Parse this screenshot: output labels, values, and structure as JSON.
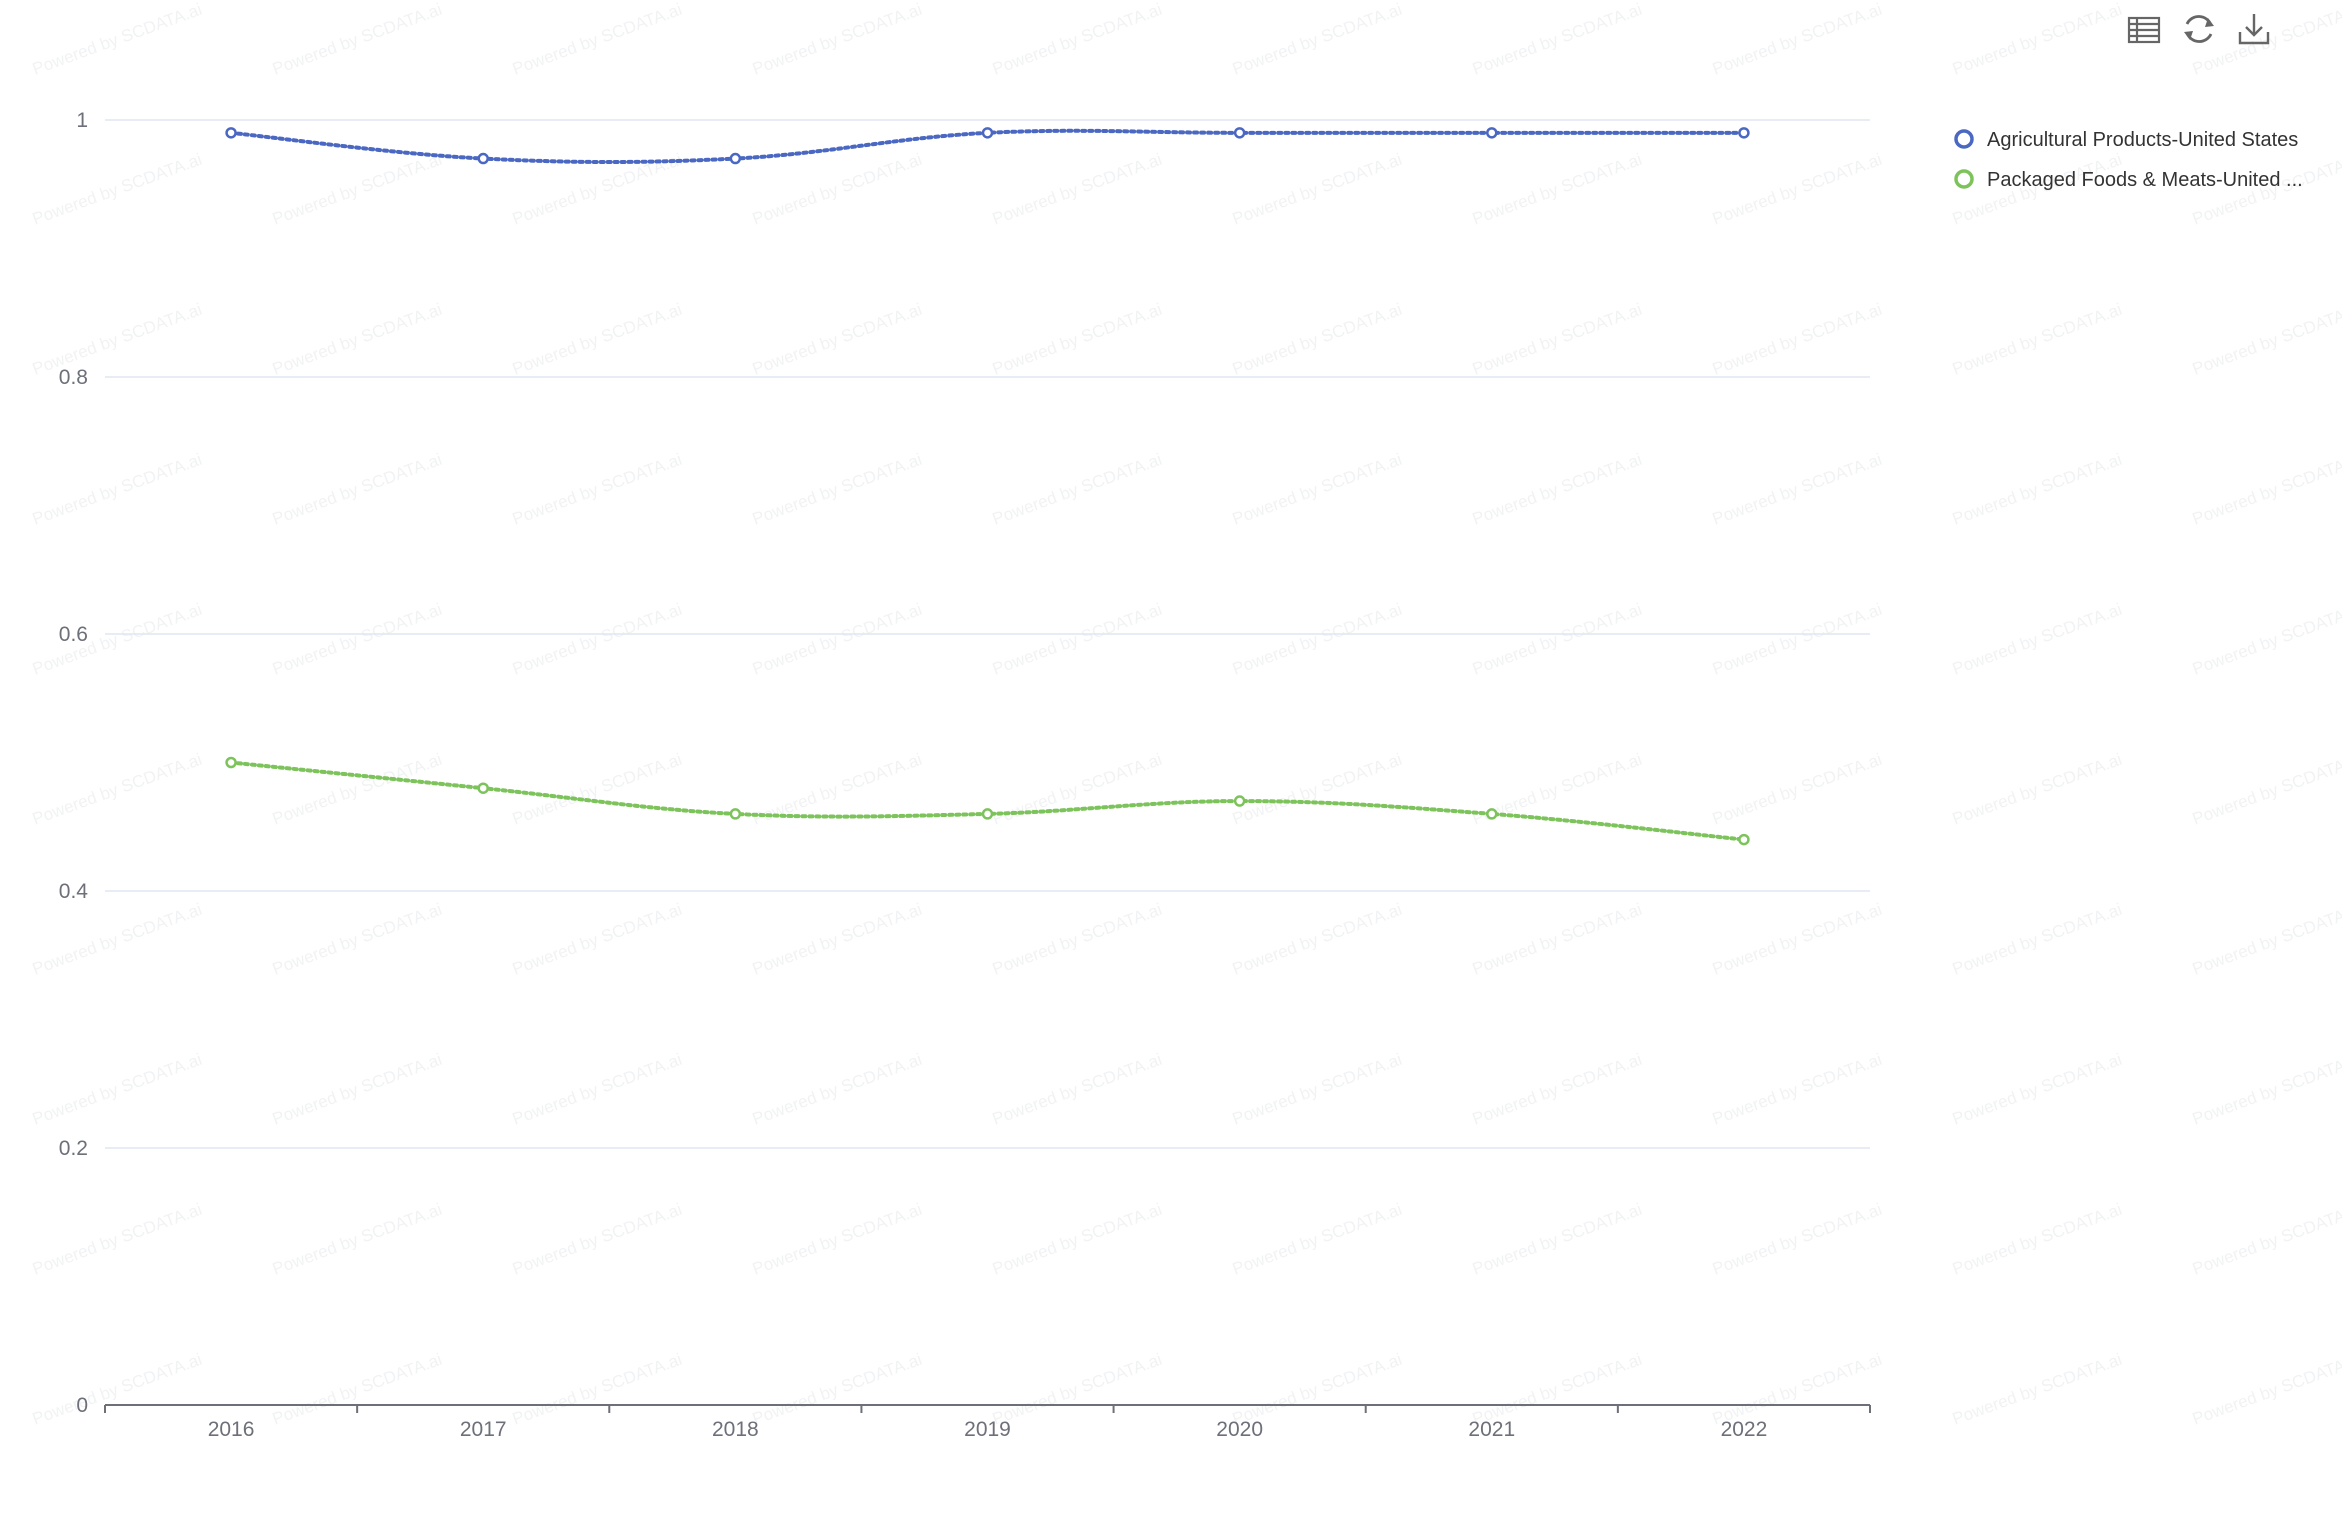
{
  "toolbox": {
    "icons": [
      "data-view-icon",
      "restore-icon",
      "download-icon"
    ]
  },
  "watermark_text": "Powered by SCDATA.ai",
  "chart_data": {
    "type": "line",
    "title": "",
    "xlabel": "",
    "ylabel": "",
    "categories": [
      "2016",
      "2017",
      "2018",
      "2019",
      "2020",
      "2021",
      "2022"
    ],
    "ylim": [
      0,
      1
    ],
    "yticks": [
      0,
      0.2,
      0.4,
      0.6,
      0.8,
      1
    ],
    "ytick_labels": [
      "0",
      "0.2",
      "0.4",
      "0.6",
      "0.8",
      "1"
    ],
    "grid": true,
    "line_style": "dotted",
    "legend_position": "top-right",
    "series": [
      {
        "name": "Agricultural Products-United States",
        "color": "#4a68c2",
        "values": [
          0.99,
          0.97,
          0.97,
          0.99,
          0.99,
          0.99,
          0.99
        ]
      },
      {
        "name": "Packaged Foods & Meats-United ...",
        "color": "#7dc35b",
        "values": [
          0.5,
          0.48,
          0.46,
          0.46,
          0.47,
          0.46,
          0.44
        ]
      }
    ]
  }
}
